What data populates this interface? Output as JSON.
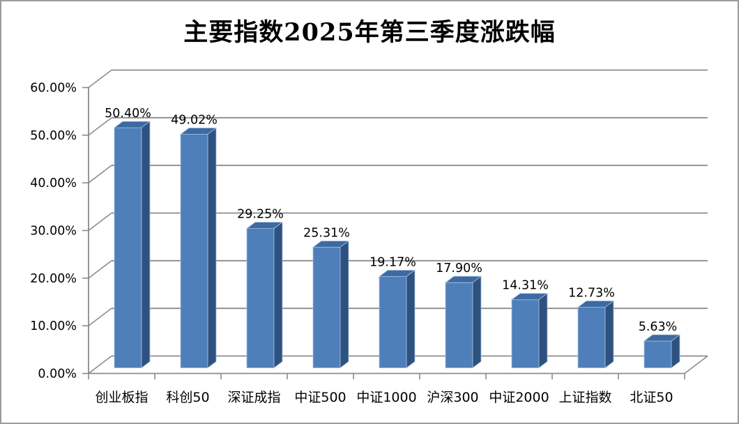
{
  "window": {
    "background": "#ffffff",
    "border_color": "#9b9b9b"
  },
  "chart_data": {
    "type": "bar",
    "style": "3d-column",
    "title": "主要指数2025年第三季度涨跌幅",
    "categories": [
      "创业板指",
      "科创50",
      "深证成指",
      "中证500",
      "中证1000",
      "沪深300",
      "中证2000",
      "上证指数",
      "北证50"
    ],
    "values": [
      50.4,
      49.02,
      29.25,
      25.31,
      19.17,
      17.9,
      14.31,
      12.73,
      5.63
    ],
    "data_labels": [
      "50.40%",
      "49.02%",
      "29.25%",
      "25.31%",
      "19.17%",
      "17.90%",
      "14.31%",
      "12.73%",
      "5.63%"
    ],
    "xlabel": "",
    "ylabel": "",
    "y_axis": {
      "min": 0,
      "max": 60,
      "step": 10,
      "tick_labels": [
        "0.00%",
        "10.00%",
        "20.00%",
        "30.00%",
        "40.00%",
        "50.00%",
        "60.00%"
      ]
    },
    "grid": true,
    "legend_position": "none",
    "colors": {
      "bar_front": "#4f7fba",
      "bar_top": "#3d6aa3",
      "bar_side": "#2e527f",
      "bar_edge": "#a9c1de",
      "gridline": "#8b8b8b",
      "axis": "#8b8b8b",
      "label": "#000000"
    }
  }
}
